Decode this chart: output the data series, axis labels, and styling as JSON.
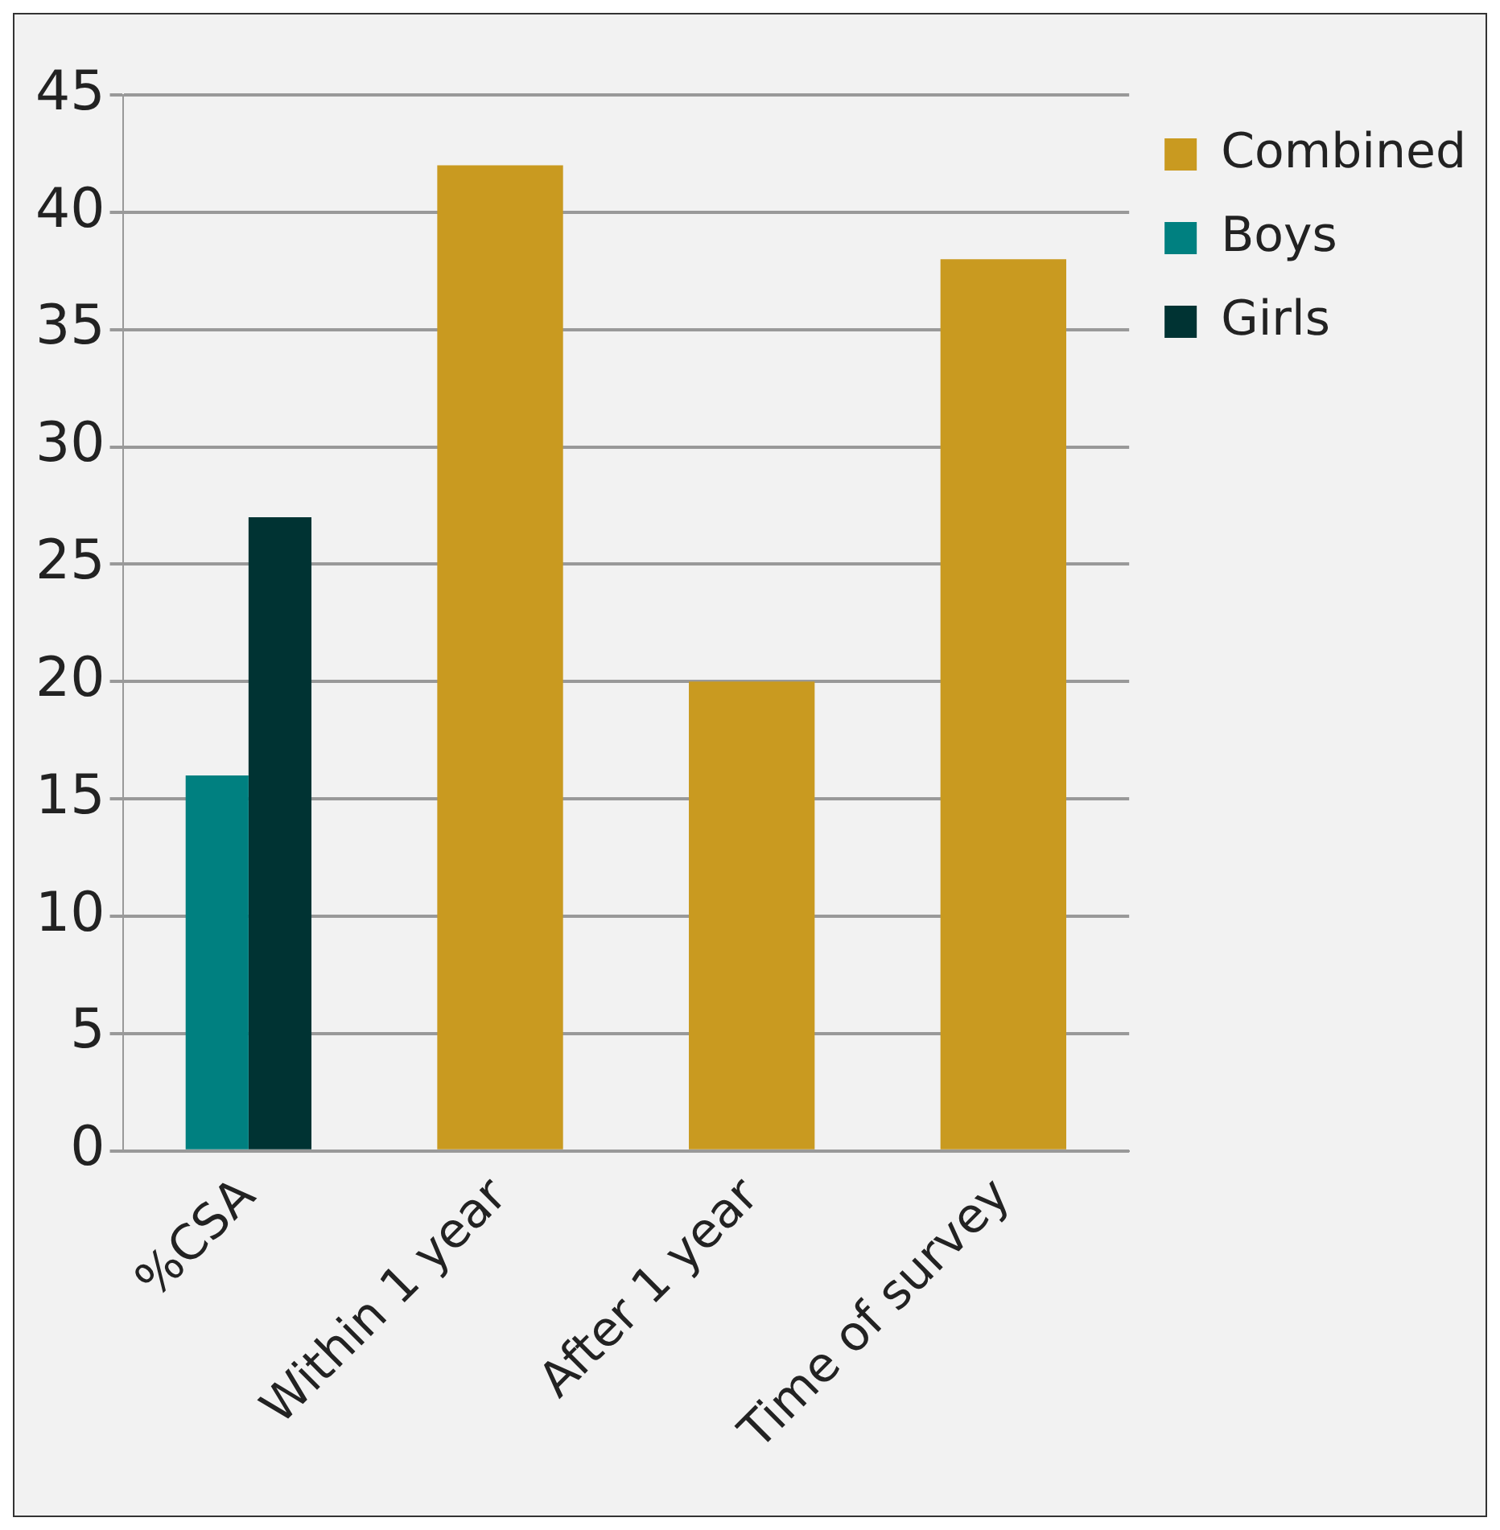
{
  "chart_data": {
    "type": "bar",
    "categories": [
      "%CSA",
      "Within 1 year",
      "After 1 year",
      "Time of survey"
    ],
    "series": [
      {
        "name": "Combined",
        "color": "#c99a20",
        "values": [
          null,
          42,
          20,
          38
        ]
      },
      {
        "name": "Boys",
        "color": "#008080",
        "values": [
          16,
          null,
          null,
          null
        ]
      },
      {
        "name": "Girls",
        "color": "#003333",
        "values": [
          27,
          null,
          null,
          null
        ]
      }
    ],
    "ylim": [
      0,
      45
    ],
    "yticks": [
      0,
      5,
      10,
      15,
      20,
      25,
      30,
      35,
      40,
      45
    ],
    "grid": "y",
    "legend": "right"
  }
}
